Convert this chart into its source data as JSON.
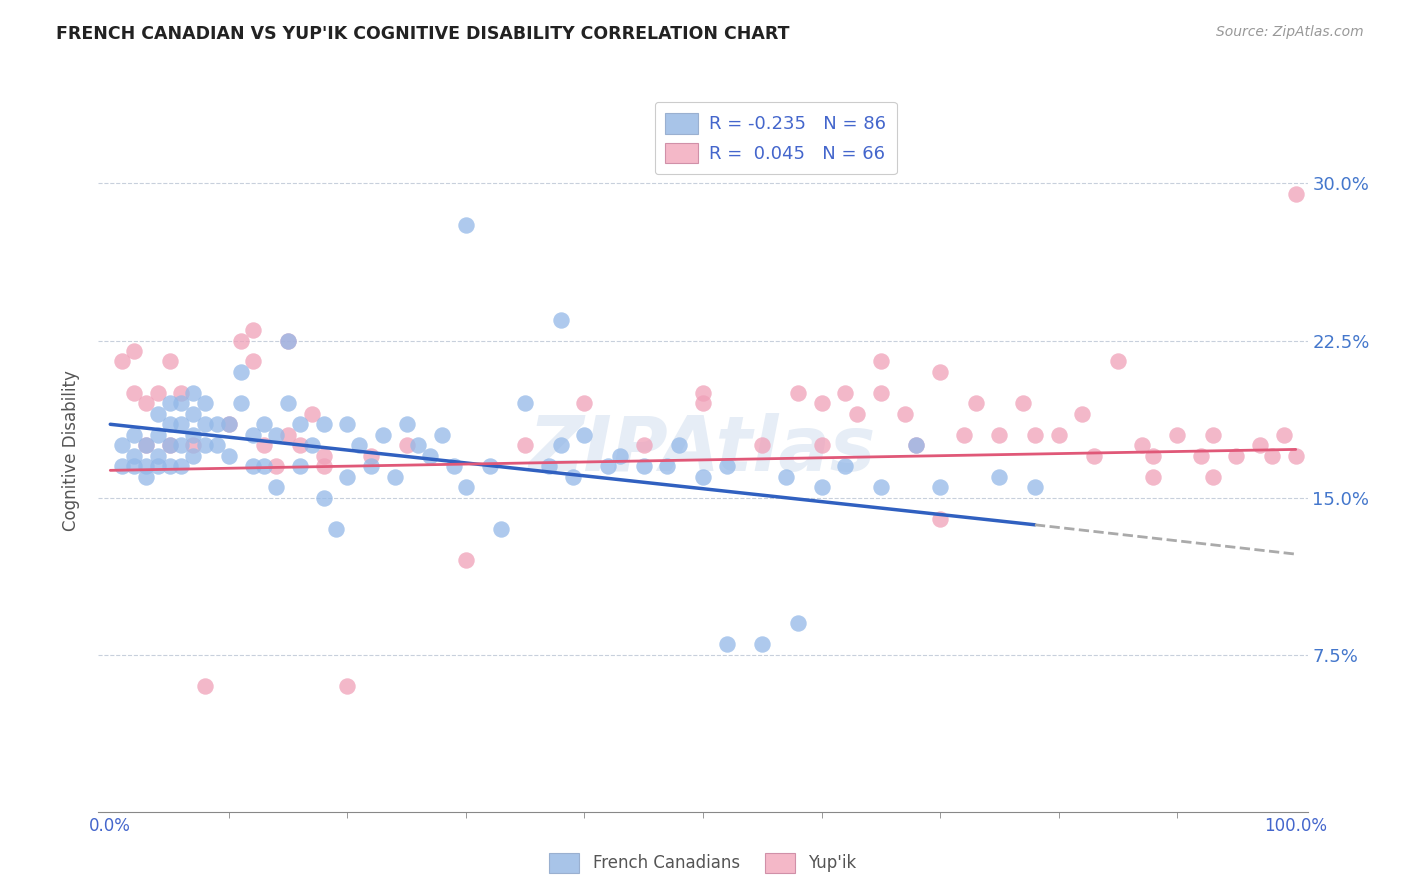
{
  "title": "FRENCH CANADIAN VS YUP'IK COGNITIVE DISABILITY CORRELATION CHART",
  "source": "Source: ZipAtlas.com",
  "ylabel": "Cognitive Disability",
  "ytick_labels": [
    "7.5%",
    "15.0%",
    "22.5%",
    "30.0%"
  ],
  "ytick_values": [
    0.075,
    0.15,
    0.225,
    0.3
  ],
  "xlim": [
    -0.01,
    1.01
  ],
  "ylim": [
    0.0,
    0.345
  ],
  "legend_label1": "R = -0.235   N = 86",
  "legend_label2": "R =  0.045   N = 66",
  "legend_color1": "#a8c4e8",
  "legend_color2": "#f4b8c8",
  "scatter_color1": "#93b8e8",
  "scatter_color2": "#f0a0b8",
  "trendline_color1": "#3060c0",
  "trendline_color2": "#e05878",
  "watermark": "ZIPAtlas",
  "footer_label1": "French Canadians",
  "footer_label2": "Yup'ik",
  "blue_x": [
    0.01,
    0.01,
    0.02,
    0.02,
    0.02,
    0.03,
    0.03,
    0.03,
    0.04,
    0.04,
    0.04,
    0.04,
    0.05,
    0.05,
    0.05,
    0.05,
    0.06,
    0.06,
    0.06,
    0.06,
    0.07,
    0.07,
    0.07,
    0.07,
    0.08,
    0.08,
    0.08,
    0.09,
    0.09,
    0.1,
    0.1,
    0.11,
    0.11,
    0.12,
    0.12,
    0.13,
    0.13,
    0.14,
    0.14,
    0.15,
    0.15,
    0.16,
    0.16,
    0.17,
    0.18,
    0.18,
    0.19,
    0.2,
    0.2,
    0.21,
    0.22,
    0.23,
    0.24,
    0.25,
    0.26,
    0.27,
    0.28,
    0.29,
    0.3,
    0.32,
    0.33,
    0.35,
    0.37,
    0.38,
    0.39,
    0.4,
    0.42,
    0.43,
    0.45,
    0.47,
    0.48,
    0.5,
    0.52,
    0.55,
    0.57,
    0.6,
    0.62,
    0.65,
    0.68,
    0.7,
    0.75,
    0.78,
    0.3,
    0.38,
    0.52,
    0.58
  ],
  "blue_y": [
    0.175,
    0.165,
    0.18,
    0.17,
    0.165,
    0.175,
    0.165,
    0.16,
    0.19,
    0.18,
    0.17,
    0.165,
    0.195,
    0.185,
    0.175,
    0.165,
    0.195,
    0.185,
    0.175,
    0.165,
    0.2,
    0.19,
    0.18,
    0.17,
    0.195,
    0.185,
    0.175,
    0.185,
    0.175,
    0.185,
    0.17,
    0.21,
    0.195,
    0.18,
    0.165,
    0.185,
    0.165,
    0.18,
    0.155,
    0.225,
    0.195,
    0.185,
    0.165,
    0.175,
    0.185,
    0.15,
    0.135,
    0.185,
    0.16,
    0.175,
    0.165,
    0.18,
    0.16,
    0.185,
    0.175,
    0.17,
    0.18,
    0.165,
    0.155,
    0.165,
    0.135,
    0.195,
    0.165,
    0.175,
    0.16,
    0.18,
    0.165,
    0.17,
    0.165,
    0.165,
    0.175,
    0.16,
    0.165,
    0.08,
    0.16,
    0.155,
    0.165,
    0.155,
    0.175,
    0.155,
    0.16,
    0.155,
    0.28,
    0.235,
    0.08,
    0.09
  ],
  "pink_x": [
    0.01,
    0.02,
    0.02,
    0.03,
    0.03,
    0.04,
    0.05,
    0.05,
    0.06,
    0.07,
    0.08,
    0.1,
    0.11,
    0.12,
    0.12,
    0.13,
    0.14,
    0.15,
    0.16,
    0.17,
    0.18,
    0.2,
    0.22,
    0.15,
    0.18,
    0.25,
    0.3,
    0.35,
    0.4,
    0.45,
    0.5,
    0.55,
    0.58,
    0.6,
    0.62,
    0.63,
    0.65,
    0.67,
    0.68,
    0.7,
    0.72,
    0.73,
    0.75,
    0.77,
    0.78,
    0.8,
    0.82,
    0.83,
    0.85,
    0.87,
    0.88,
    0.9,
    0.92,
    0.93,
    0.95,
    0.97,
    0.98,
    0.99,
    1.0,
    1.0,
    0.5,
    0.6,
    0.65,
    0.7,
    0.88,
    0.93
  ],
  "pink_y": [
    0.215,
    0.22,
    0.2,
    0.195,
    0.175,
    0.2,
    0.215,
    0.175,
    0.2,
    0.175,
    0.06,
    0.185,
    0.225,
    0.23,
    0.215,
    0.175,
    0.165,
    0.18,
    0.175,
    0.19,
    0.17,
    0.06,
    0.17,
    0.225,
    0.165,
    0.175,
    0.12,
    0.175,
    0.195,
    0.175,
    0.195,
    0.175,
    0.2,
    0.175,
    0.2,
    0.19,
    0.215,
    0.19,
    0.175,
    0.21,
    0.18,
    0.195,
    0.18,
    0.195,
    0.18,
    0.18,
    0.19,
    0.17,
    0.215,
    0.175,
    0.17,
    0.18,
    0.17,
    0.18,
    0.17,
    0.175,
    0.17,
    0.18,
    0.17,
    0.295,
    0.2,
    0.195,
    0.2,
    0.14,
    0.16,
    0.16
  ],
  "trendline_blue_x0": 0.0,
  "trendline_blue_y0": 0.185,
  "trendline_blue_x1": 0.78,
  "trendline_blue_y1": 0.137,
  "trendline_blue_dash_x0": 0.78,
  "trendline_blue_dash_y0": 0.137,
  "trendline_blue_dash_x1": 1.0,
  "trendline_blue_dash_y1": 0.123,
  "trendline_pink_x0": 0.0,
  "trendline_pink_y0": 0.163,
  "trendline_pink_x1": 1.0,
  "trendline_pink_y1": 0.173
}
